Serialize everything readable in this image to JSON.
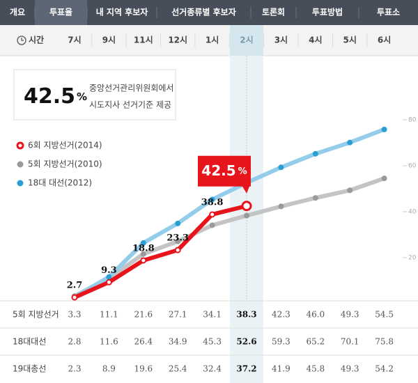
{
  "nav": {
    "tabs": [
      "개요",
      "투표율",
      "내 지역 후보자",
      "선거종류별 후보자",
      "토론회",
      "투표방법",
      "투표소"
    ],
    "active": 1
  },
  "time_label": "시간",
  "info": {
    "value": "42.5",
    "unit": "%",
    "lines": [
      "중앙선거관리위원회에서",
      "시도지사 선거기준 제공"
    ]
  },
  "callout": {
    "value": "42.5",
    "unit": "%"
  },
  "chart_data": {
    "type": "line",
    "categories": [
      "7시",
      "9시",
      "11시",
      "12시",
      "1시",
      "2시",
      "3시",
      "4시",
      "5시",
      "6시"
    ],
    "highlight": 5,
    "series": [
      {
        "name": "5회 지방선거(2010)",
        "color": "#c4c4c4",
        "marker": "#9a9a9a",
        "values": [
          3.3,
          11.1,
          21.6,
          27.1,
          34.1,
          38.3,
          42.3,
          46.0,
          49.3,
          54.5
        ]
      },
      {
        "name": "18대 대선(2012)",
        "color": "#93cdea",
        "marker": "#2a9fd6",
        "values": [
          2.8,
          11.6,
          26.4,
          34.9,
          45.3,
          52.6,
          59.3,
          65.2,
          70.1,
          75.8
        ]
      },
      {
        "name": "6회 지방선거(2014)",
        "color": "#e8141b",
        "marker": "#ffffff",
        "values": [
          2.7,
          9.3,
          18.8,
          23.3,
          38.8,
          42.5,
          null,
          null,
          null,
          null
        ],
        "labels": true
      }
    ],
    "legend_order": [
      2,
      0,
      1
    ],
    "ylim": [
      0,
      82
    ],
    "yticks": [
      20,
      40,
      60,
      80
    ]
  },
  "table": {
    "rows": [
      [
        "5회 지방선거",
        "3.3",
        "11.1",
        "21.6",
        "27.1",
        "34.1",
        "38.3",
        "42.3",
        "46.0",
        "49.3",
        "54.5"
      ],
      [
        "18대대선",
        "2.8",
        "11.6",
        "26.4",
        "34.9",
        "45.3",
        "52.6",
        "59.3",
        "65.2",
        "70.1",
        "75.8"
      ],
      [
        "19대총선",
        "2.3",
        "8.9",
        "19.6",
        "25.4",
        "32.4",
        "37.2",
        "41.9",
        "45.8",
        "49.3",
        "54.2"
      ]
    ]
  }
}
